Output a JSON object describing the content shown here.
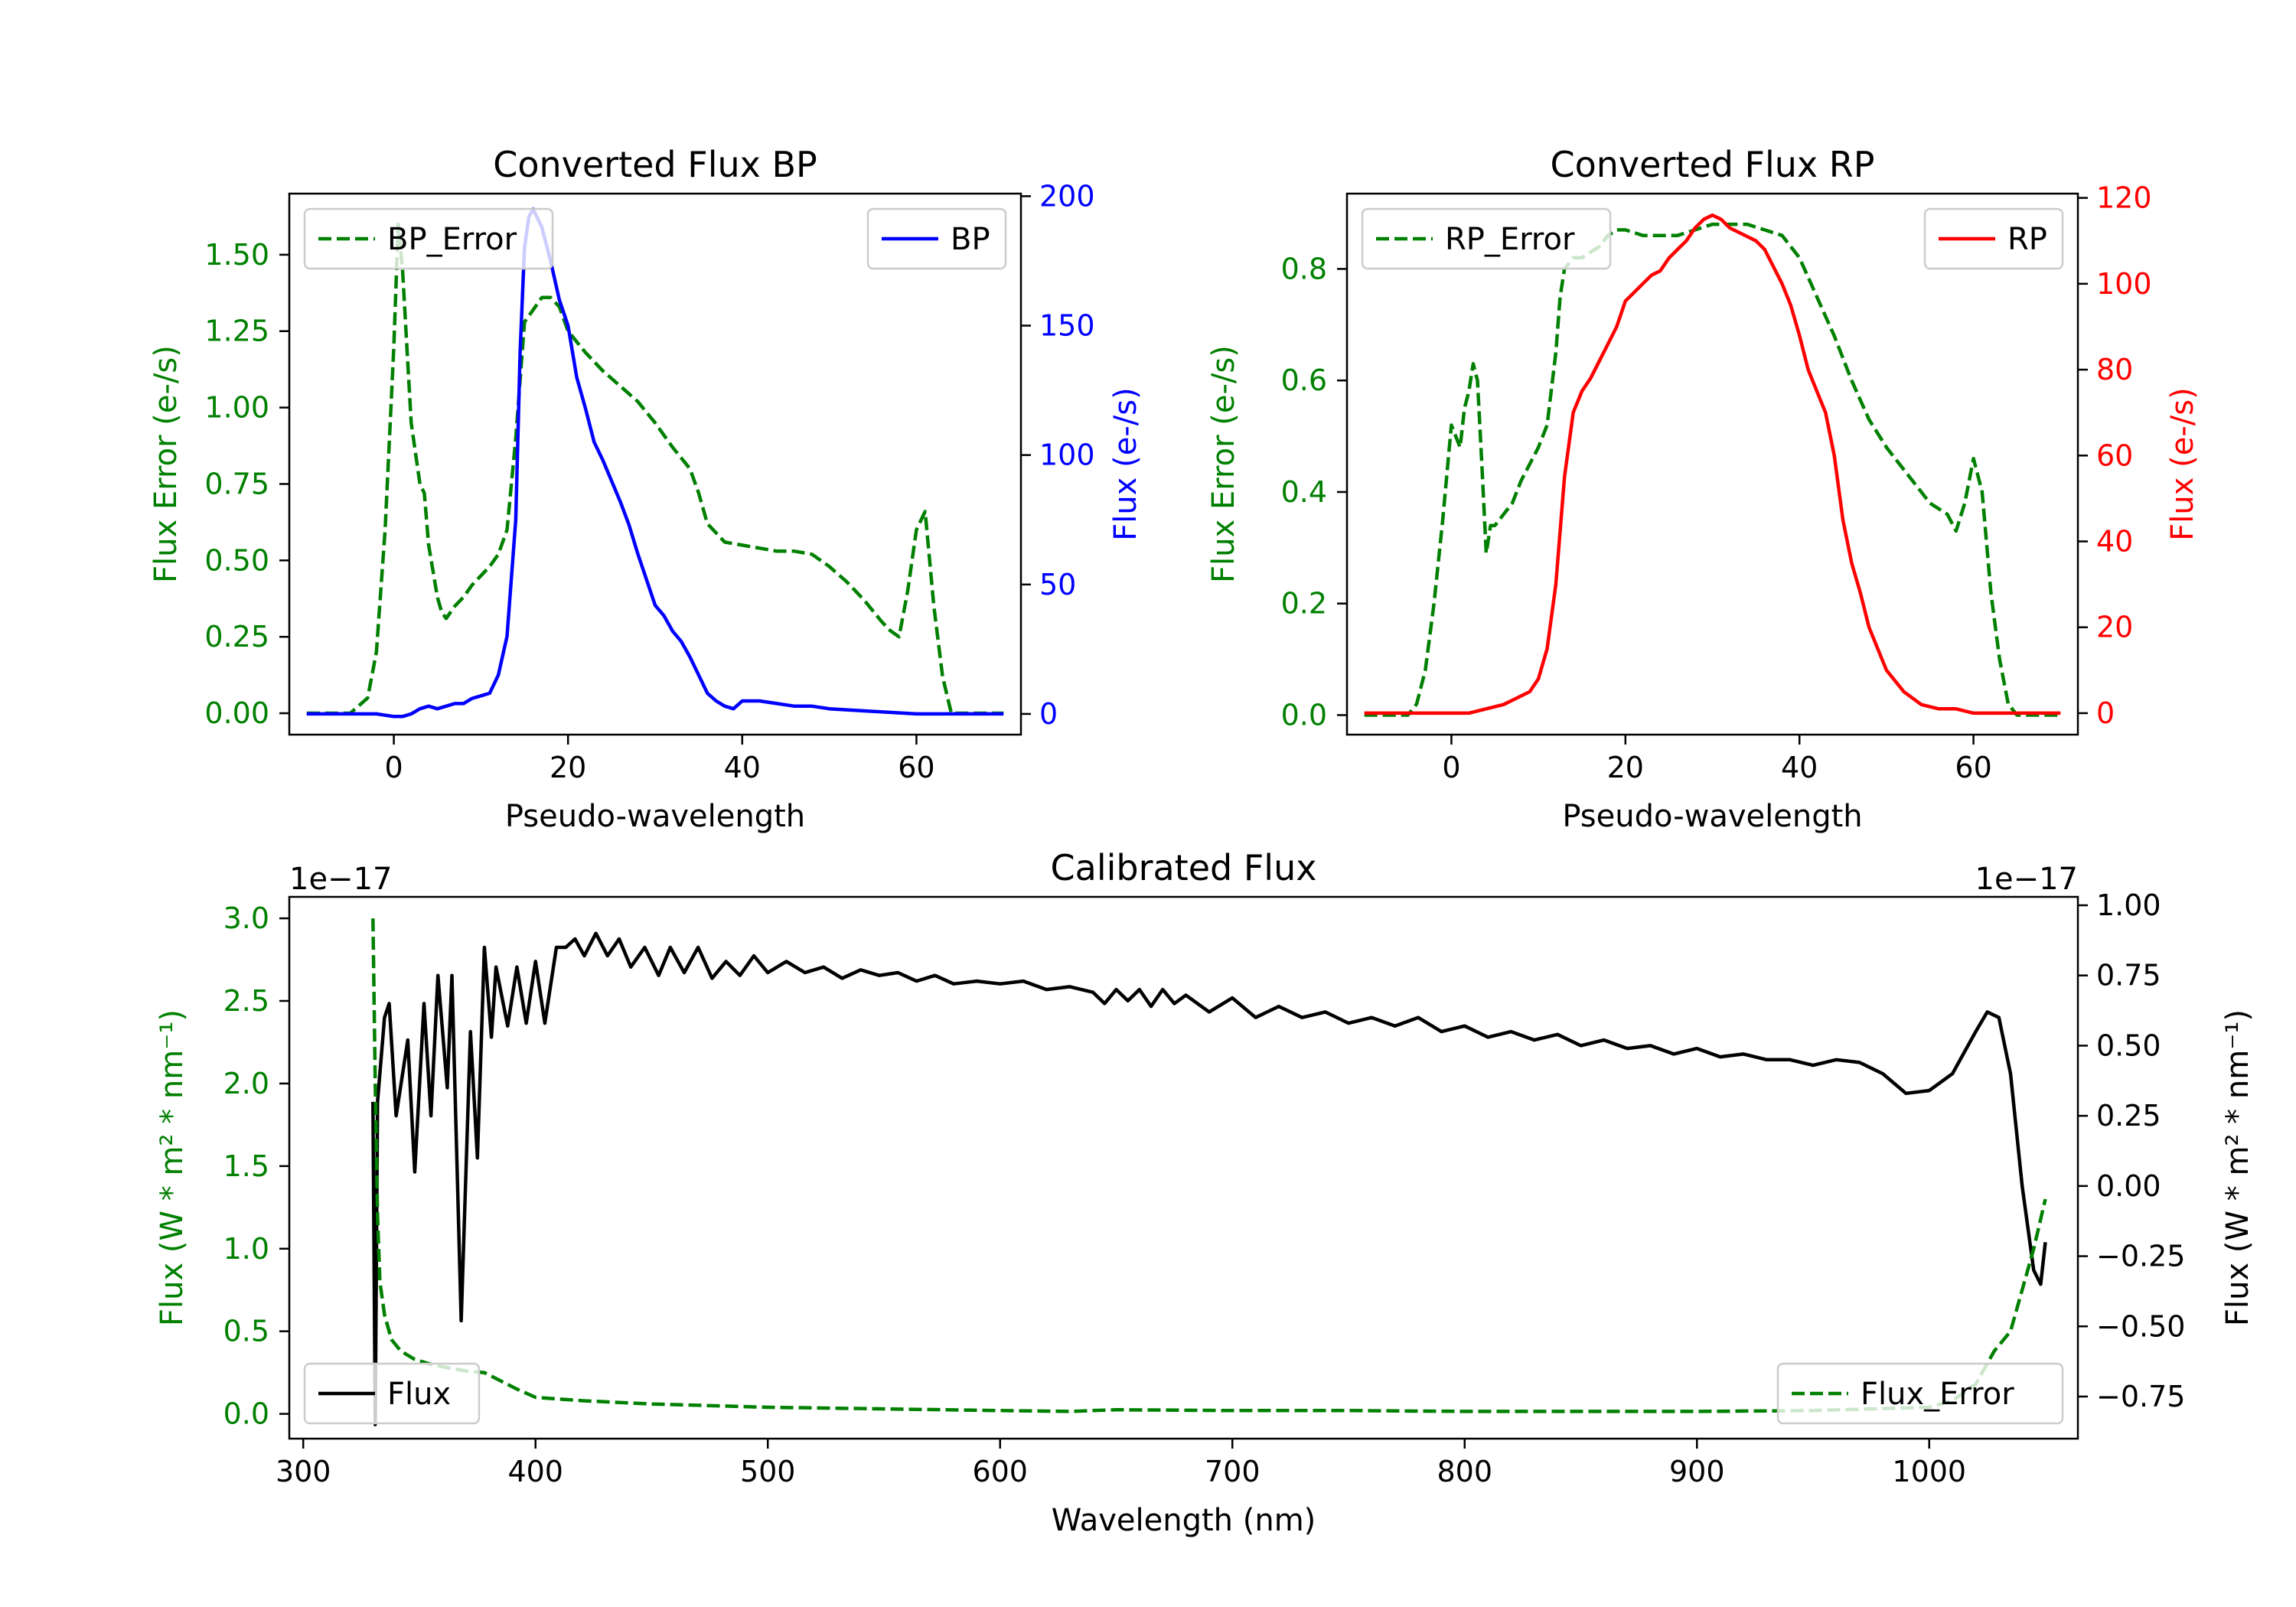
{
  "chart_data": [
    {
      "id": "bp",
      "type": "line",
      "title": "Converted Flux BP",
      "xlabel": "Pseudo-wavelength",
      "xlim": [
        -12,
        72
      ],
      "xticks": [
        0,
        20,
        40,
        60
      ],
      "left_axis": {
        "label": "Flux Error (e-/s)",
        "color": "#008000",
        "ylim": [
          -0.07,
          1.7
        ],
        "ticks": [
          0.0,
          0.25,
          0.5,
          0.75,
          1.0,
          1.25,
          1.5
        ],
        "tick_labels": [
          "0.00",
          "0.25",
          "0.50",
          "0.75",
          "1.00",
          "1.25",
          "1.50"
        ]
      },
      "right_axis": {
        "label": "Flux (e-/s)",
        "color": "#0000ff",
        "ylim": [
          -8,
          201
        ],
        "ticks": [
          0,
          50,
          100,
          150,
          200
        ],
        "tick_labels": [
          "0",
          "50",
          "100",
          "150",
          "200"
        ]
      },
      "series": [
        {
          "name": "BP_Error",
          "axis": "left",
          "color": "#008000",
          "style": "dashed",
          "x": [
            -10,
            -5,
            -3,
            -2,
            -1,
            0,
            0.5,
            1,
            1.5,
            2,
            3,
            3.5,
            4,
            5,
            5.5,
            6,
            7,
            8,
            9,
            10,
            11,
            12,
            13,
            14,
            15,
            16,
            17,
            18,
            19,
            20,
            22,
            24,
            26,
            28,
            30,
            32,
            34,
            35,
            36,
            38,
            40,
            42,
            44,
            46,
            48,
            50,
            52,
            54,
            56,
            57,
            58,
            59,
            60,
            61,
            62,
            63,
            64,
            66,
            70
          ],
          "y": [
            0.0,
            0.0,
            0.05,
            0.2,
            0.6,
            1.2,
            1.6,
            1.45,
            1.2,
            0.95,
            0.75,
            0.72,
            0.55,
            0.38,
            0.33,
            0.31,
            0.35,
            0.38,
            0.42,
            0.45,
            0.48,
            0.52,
            0.6,
            0.9,
            1.28,
            1.32,
            1.36,
            1.36,
            1.33,
            1.25,
            1.18,
            1.12,
            1.07,
            1.02,
            0.95,
            0.87,
            0.8,
            0.72,
            0.62,
            0.56,
            0.55,
            0.54,
            0.53,
            0.53,
            0.52,
            0.48,
            0.43,
            0.37,
            0.3,
            0.27,
            0.25,
            0.4,
            0.6,
            0.66,
            0.35,
            0.12,
            0.0,
            0.0,
            0.0
          ]
        },
        {
          "name": "BP",
          "axis": "right",
          "color": "#0000ff",
          "style": "solid",
          "x": [
            -10,
            -5,
            -2,
            0,
            1,
            2,
            3,
            4,
            5,
            6,
            7,
            8,
            9,
            10,
            11,
            12,
            13,
            14,
            14.5,
            15,
            15.5,
            16,
            17,
            18,
            19,
            20,
            21,
            22,
            23,
            24,
            25,
            26,
            27,
            28,
            29,
            30,
            31,
            32,
            33,
            34,
            35,
            36,
            37,
            38,
            39,
            40,
            41,
            42,
            44,
            46,
            48,
            50,
            55,
            60,
            65,
            70
          ],
          "y": [
            0,
            0,
            0,
            -1,
            -1,
            0,
            2,
            3,
            2,
            3,
            4,
            4,
            6,
            7,
            8,
            15,
            30,
            75,
            140,
            180,
            192,
            195,
            188,
            175,
            160,
            150,
            130,
            118,
            105,
            98,
            90,
            82,
            73,
            62,
            52,
            42,
            38,
            32,
            28,
            22,
            15,
            8,
            5,
            3,
            2,
            5,
            5,
            5,
            4,
            3,
            3,
            2,
            1,
            0,
            0,
            0
          ]
        }
      ],
      "legends": [
        {
          "entries": [
            "BP_Error"
          ],
          "location": "upper left"
        },
        {
          "entries": [
            "BP"
          ],
          "location": "upper right"
        }
      ]
    },
    {
      "id": "rp",
      "type": "line",
      "title": "Converted Flux RP",
      "xlabel": "Pseudo-wavelength",
      "xlim": [
        -12,
        72
      ],
      "xticks": [
        0,
        20,
        40,
        60
      ],
      "left_axis": {
        "label": "Flux Error (e-/s)",
        "color": "#008000",
        "ylim": [
          -0.035,
          0.935
        ],
        "ticks": [
          0.0,
          0.2,
          0.4,
          0.6,
          0.8
        ],
        "tick_labels": [
          "0.0",
          "0.2",
          "0.4",
          "0.6",
          "0.8"
        ]
      },
      "right_axis": {
        "label": "Flux (e-/s)",
        "color": "#ff0000",
        "ylim": [
          -5,
          121
        ],
        "ticks": [
          0,
          20,
          40,
          60,
          80,
          100,
          120
        ],
        "tick_labels": [
          "0",
          "20",
          "40",
          "60",
          "80",
          "100",
          "120"
        ]
      },
      "series": [
        {
          "name": "RP_Error",
          "axis": "left",
          "color": "#008000",
          "style": "dashed",
          "x": [
            -10,
            -5,
            -4,
            -3,
            -2,
            -1,
            0,
            0.5,
            1,
            1.5,
            2,
            2.5,
            3,
            3.5,
            4,
            4.5,
            5,
            6,
            7,
            8,
            10,
            11,
            12,
            12.5,
            13,
            14,
            15,
            16,
            17,
            18,
            19,
            20,
            22,
            24,
            26,
            28,
            30,
            32,
            34,
            36,
            38,
            40,
            42,
            44,
            46,
            48,
            50,
            52,
            54,
            55,
            56,
            57,
            58,
            59,
            60,
            61,
            62,
            63,
            64,
            65,
            70
          ],
          "y": [
            0.0,
            0.0,
            0.02,
            0.08,
            0.2,
            0.35,
            0.52,
            0.5,
            0.48,
            0.55,
            0.58,
            0.63,
            0.6,
            0.45,
            0.29,
            0.34,
            0.34,
            0.36,
            0.38,
            0.42,
            0.48,
            0.52,
            0.65,
            0.75,
            0.8,
            0.82,
            0.82,
            0.83,
            0.84,
            0.86,
            0.87,
            0.87,
            0.86,
            0.86,
            0.86,
            0.87,
            0.88,
            0.88,
            0.88,
            0.87,
            0.86,
            0.82,
            0.75,
            0.68,
            0.6,
            0.53,
            0.48,
            0.44,
            0.4,
            0.38,
            0.37,
            0.36,
            0.33,
            0.38,
            0.46,
            0.4,
            0.22,
            0.1,
            0.02,
            0.0,
            0.0
          ]
        },
        {
          "name": "RP",
          "axis": "right",
          "color": "#ff0000",
          "style": "solid",
          "x": [
            -10,
            -5,
            0,
            2,
            4,
            6,
            7,
            8,
            9,
            10,
            11,
            12,
            13,
            14,
            15,
            16,
            17,
            18,
            19,
            20,
            21,
            22,
            23,
            24,
            25,
            26,
            27,
            28,
            29,
            30,
            31,
            32,
            33,
            34,
            35,
            36,
            37,
            38,
            39,
            40,
            41,
            42,
            43,
            44,
            45,
            46,
            47,
            48,
            49,
            50,
            52,
            54,
            56,
            58,
            60,
            62,
            65,
            70
          ],
          "y": [
            0,
            0,
            0,
            0,
            1,
            2,
            3,
            4,
            5,
            8,
            15,
            30,
            55,
            70,
            75,
            78,
            82,
            86,
            90,
            96,
            98,
            100,
            102,
            103,
            106,
            108,
            110,
            113,
            115,
            116,
            115,
            113,
            112,
            111,
            110,
            108,
            104,
            100,
            95,
            88,
            80,
            75,
            70,
            60,
            45,
            35,
            28,
            20,
            15,
            10,
            5,
            2,
            1,
            1,
            0,
            0,
            0,
            0
          ]
        }
      ],
      "legends": [
        {
          "entries": [
            "RP_Error"
          ],
          "location": "upper left"
        },
        {
          "entries": [
            "RP"
          ],
          "location": "upper right"
        }
      ]
    },
    {
      "id": "calibrated",
      "type": "line",
      "title": "Calibrated Flux",
      "xlabel": "Wavelength (nm)",
      "xlim": [
        294,
        1064
      ],
      "xticks": [
        300,
        400,
        500,
        600,
        700,
        800,
        900,
        1000
      ],
      "left_axis": {
        "label": "Flux (W * m² * nm⁻¹)",
        "color": "#008000",
        "offset": "1e−17",
        "ylim": [
          -0.15,
          3.13
        ],
        "ticks": [
          0.0,
          0.5,
          1.0,
          1.5,
          2.0,
          2.5,
          3.0
        ],
        "tick_labels": [
          "0.0",
          "0.5",
          "1.0",
          "1.5",
          "2.0",
          "2.5",
          "3.0"
        ]
      },
      "right_axis": {
        "label": "Flux (W * m² * nm⁻¹)",
        "color": "#000000",
        "offset": "1e−17",
        "ylim": [
          -0.9,
          1.03
        ],
        "ticks": [
          -0.75,
          -0.5,
          -0.25,
          0.0,
          0.25,
          0.5,
          0.75,
          1.0
        ],
        "tick_labels": [
          "−0.75",
          "−0.50",
          "−0.25",
          "0.00",
          "0.25",
          "0.50",
          "0.75",
          "1.00"
        ]
      },
      "series": [
        {
          "name": "Flux",
          "axis": "right",
          "color": "#000000",
          "style": "solid",
          "x": [
            330,
            331,
            332,
            335,
            337,
            340,
            345,
            348,
            352,
            355,
            358,
            362,
            364,
            368,
            372,
            375,
            378,
            381,
            383,
            388,
            392,
            396,
            400,
            404,
            409,
            413,
            417,
            421,
            426,
            431,
            436,
            441,
            447,
            453,
            458,
            464,
            470,
            476,
            482,
            488,
            494,
            500,
            508,
            516,
            524,
            532,
            540,
            548,
            556,
            564,
            572,
            580,
            590,
            600,
            610,
            620,
            630,
            640,
            645,
            650,
            655,
            660,
            665,
            670,
            675,
            680,
            690,
            700,
            710,
            720,
            730,
            740,
            750,
            760,
            770,
            780,
            790,
            800,
            810,
            820,
            830,
            840,
            850,
            860,
            870,
            880,
            890,
            900,
            910,
            920,
            930,
            940,
            950,
            960,
            970,
            980,
            990,
            1000,
            1010,
            1020,
            1025,
            1030,
            1035,
            1040,
            1045,
            1048,
            1050
          ],
          "y": [
            0.3,
            -0.85,
            0.3,
            0.6,
            0.65,
            0.25,
            0.52,
            0.05,
            0.65,
            0.25,
            0.75,
            0.35,
            0.75,
            -0.48,
            0.55,
            0.1,
            0.85,
            0.53,
            0.78,
            0.57,
            0.78,
            0.58,
            0.8,
            0.58,
            0.85,
            0.85,
            0.88,
            0.82,
            0.9,
            0.82,
            0.88,
            0.78,
            0.85,
            0.75,
            0.85,
            0.76,
            0.85,
            0.74,
            0.8,
            0.75,
            0.82,
            0.76,
            0.8,
            0.76,
            0.78,
            0.74,
            0.77,
            0.75,
            0.76,
            0.73,
            0.75,
            0.72,
            0.73,
            0.72,
            0.73,
            0.7,
            0.71,
            0.69,
            0.65,
            0.7,
            0.66,
            0.7,
            0.64,
            0.7,
            0.65,
            0.68,
            0.62,
            0.67,
            0.6,
            0.64,
            0.6,
            0.62,
            0.58,
            0.6,
            0.57,
            0.6,
            0.55,
            0.57,
            0.53,
            0.55,
            0.52,
            0.54,
            0.5,
            0.52,
            0.49,
            0.5,
            0.47,
            0.49,
            0.46,
            0.47,
            0.45,
            0.45,
            0.43,
            0.45,
            0.44,
            0.4,
            0.33,
            0.34,
            0.4,
            0.55,
            0.62,
            0.6,
            0.4,
            0.0,
            -0.3,
            -0.35,
            -0.2
          ]
        },
        {
          "name": "Flux_Error",
          "axis": "left",
          "color": "#008000",
          "style": "dashed",
          "x": [
            330,
            331,
            332,
            333,
            335,
            338,
            342,
            348,
            355,
            362,
            370,
            378,
            385,
            392,
            400,
            420,
            450,
            500,
            550,
            600,
            630,
            640,
            650,
            700,
            750,
            800,
            850,
            900,
            950,
            1000,
            1010,
            1020,
            1028,
            1035,
            1040,
            1045,
            1050
          ],
          "y": [
            3.0,
            2.0,
            1.2,
            0.8,
            0.6,
            0.45,
            0.38,
            0.33,
            0.3,
            0.28,
            0.26,
            0.25,
            0.2,
            0.15,
            0.1,
            0.08,
            0.06,
            0.04,
            0.03,
            0.02,
            0.015,
            0.02,
            0.025,
            0.02,
            0.02,
            0.015,
            0.015,
            0.015,
            0.02,
            0.04,
            0.08,
            0.18,
            0.38,
            0.5,
            0.75,
            1.0,
            1.3
          ]
        }
      ],
      "legends": [
        {
          "entries": [
            "Flux"
          ],
          "location": "lower left"
        },
        {
          "entries": [
            "Flux_Error"
          ],
          "location": "lower right"
        }
      ]
    }
  ]
}
